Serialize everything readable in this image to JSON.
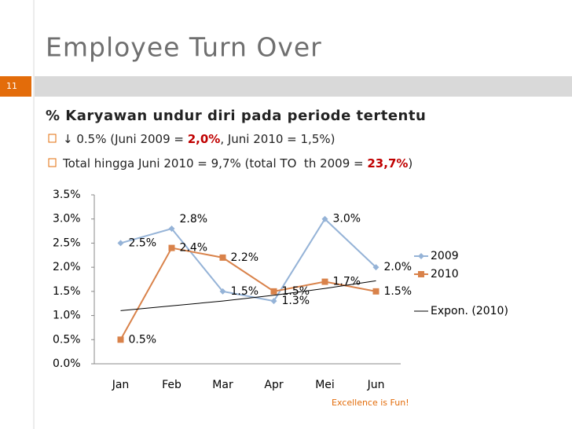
{
  "slide": {
    "title": "Employee Turn Over",
    "number": "11",
    "footer": "Excellence is Fun!",
    "heading": "% Karyawan undur diri pada periode tertentu",
    "bullets": [
      [
        {
          "text": "↓ 0.5% (Juni 2009 = "
        },
        {
          "text": "2,0%",
          "color": "#c00000"
        },
        {
          "text": ", Juni 2010 = 1,5%)"
        }
      ],
      [
        {
          "text": "Total hingga Juni 2010 = 9,7% (total TO  th 2009 = "
        },
        {
          "text": "23,7%",
          "color": "#c00000"
        },
        {
          "text": ")"
        }
      ]
    ]
  },
  "chart_data": {
    "type": "line",
    "categories": [
      "Jan",
      "Feb",
      "Mar",
      "Apr",
      "Mei",
      "Jun"
    ],
    "series": [
      {
        "name": "2009",
        "color": "#95b3d7",
        "marker": "diamond",
        "values": [
          2.5,
          2.8,
          1.5,
          1.3,
          3.0,
          2.0
        ],
        "value_labels": [
          "2.5%",
          "2.8%",
          "1.5%",
          "1.3%",
          "3.0%",
          "2.0%"
        ]
      },
      {
        "name": "2010",
        "color": "#d9824a",
        "marker": "square",
        "values": [
          0.5,
          2.4,
          2.2,
          1.5,
          1.7,
          1.5
        ],
        "value_labels": [
          "0.5%",
          "2.4%",
          "2.2%",
          "1.5%",
          "1.7%",
          "1.5%"
        ]
      },
      {
        "name": "Expon. (2010)",
        "color": "#000000",
        "values": [
          1.1,
          1.2,
          1.3,
          1.42,
          1.56,
          1.72
        ]
      }
    ],
    "ylim": [
      0,
      3.5
    ],
    "yticks": [
      {
        "value": 0,
        "label": "0.0%"
      },
      {
        "value": 0.5,
        "label": "0.5%"
      },
      {
        "value": 1,
        "label": "1.0%"
      },
      {
        "value": 1.5,
        "label": "1.5%"
      },
      {
        "value": 2,
        "label": "2.0%"
      },
      {
        "value": 2.5,
        "label": "2.5%"
      },
      {
        "value": 3,
        "label": "3.0%"
      },
      {
        "value": 3.5,
        "label": "3.5%"
      }
    ],
    "grid": false,
    "legend": "right"
  }
}
